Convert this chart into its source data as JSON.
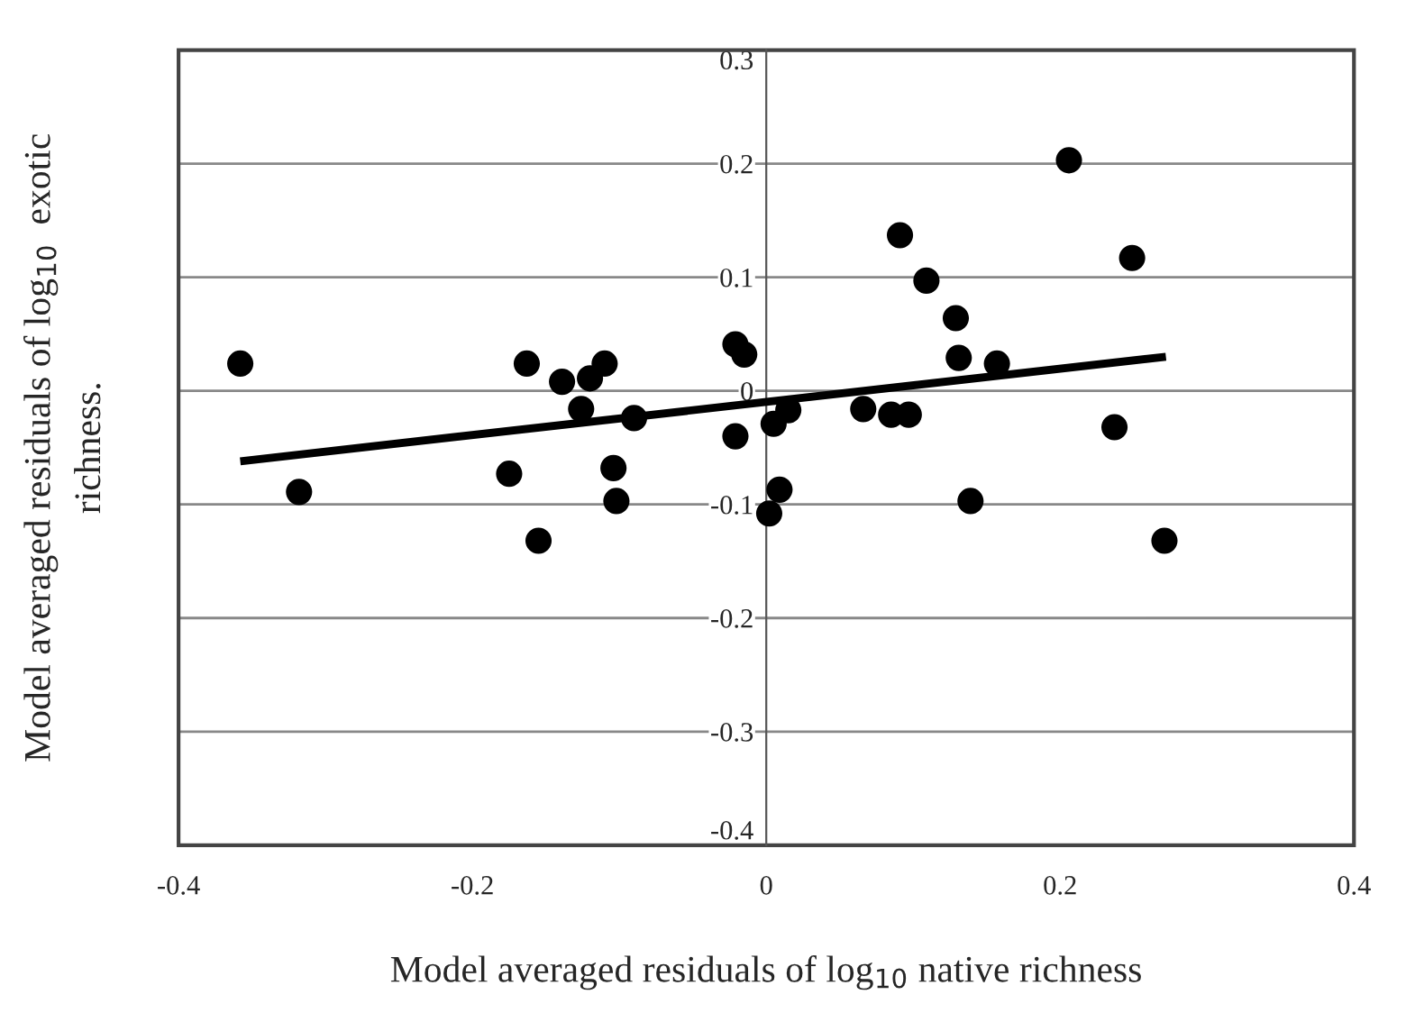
{
  "chart_data": {
    "type": "scatter",
    "xlabel": "Model averaged residuals of log$_{10}$ native richness",
    "ylabel": "Model averaged residuals of log$_{10}$  exotic\nrichness.",
    "xlim": [
      -0.4,
      0.4
    ],
    "xticks": [
      -0.4,
      -0.2,
      0,
      0.2,
      0.4
    ],
    "ylim": [
      -0.4,
      0.3
    ],
    "yticks": [
      -0.4,
      -0.3,
      -0.2,
      -0.1,
      0,
      0.1,
      0.2,
      0.3
    ],
    "grid": "y",
    "series": [
      {
        "marker": "circle",
        "color": "#000000",
        "x": [
          -0.358,
          -0.318,
          -0.175,
          -0.163,
          -0.155,
          -0.139,
          -0.126,
          -0.12,
          -0.11,
          -0.104,
          -0.102,
          -0.09,
          -0.021,
          -0.015,
          -0.021,
          0.005,
          0.015,
          0.009,
          0.002,
          0.066,
          0.085,
          0.097,
          0.091,
          0.109,
          0.129,
          0.131,
          0.157,
          0.139,
          0.206,
          0.249,
          0.237,
          0.271
        ],
        "values": [
          0.024,
          -0.089,
          -0.073,
          0.024,
          -0.132,
          0.008,
          -0.016,
          0.011,
          0.024,
          -0.068,
          -0.097,
          -0.024,
          0.041,
          0.032,
          -0.04,
          -0.029,
          -0.017,
          -0.087,
          -0.108,
          -0.016,
          -0.021,
          -0.021,
          0.137,
          0.097,
          0.064,
          0.029,
          0.024,
          -0.097,
          0.203,
          0.117,
          -0.032,
          -0.132
        ]
      },
      {
        "type": "line",
        "color": "#000000",
        "x": [
          -0.358,
          0.272
        ],
        "values": [
          -0.062,
          0.03
        ]
      }
    ]
  }
}
